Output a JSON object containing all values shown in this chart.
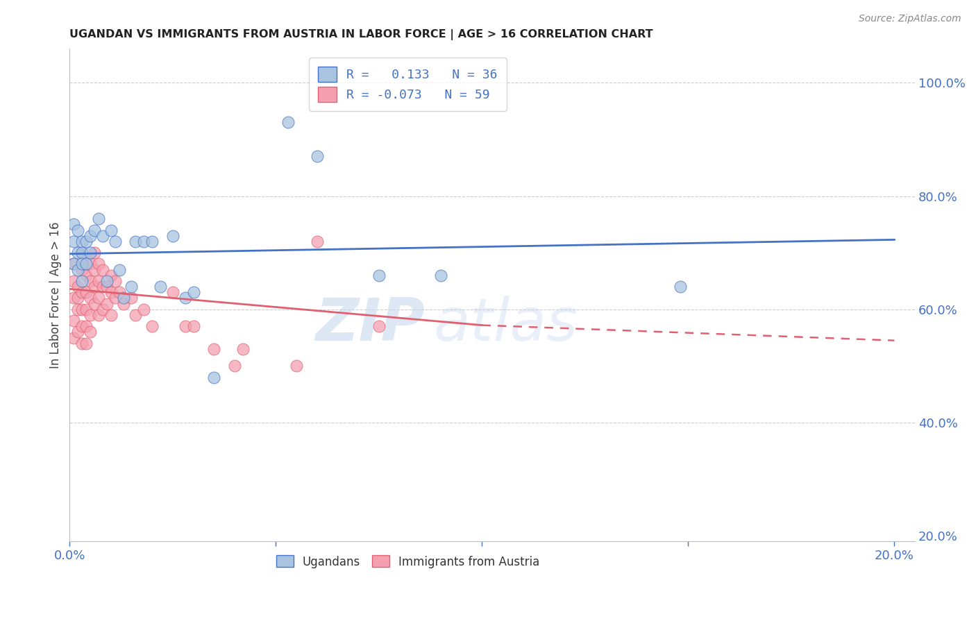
{
  "title": "UGANDAN VS IMMIGRANTS FROM AUSTRIA IN LABOR FORCE | AGE > 16 CORRELATION CHART",
  "source": "Source: ZipAtlas.com",
  "ylabel_label": "In Labor Force | Age > 16",
  "ugandan_R": 0.133,
  "ugandan_N": 36,
  "austria_R": -0.073,
  "austria_N": 59,
  "ugandan_color": "#a8c4e0",
  "austria_color": "#f4a0b0",
  "ugandan_line_color": "#4472C4",
  "austria_line_color": "#E06070",
  "ugandan_x": [
    0.001,
    0.001,
    0.001,
    0.002,
    0.002,
    0.002,
    0.003,
    0.003,
    0.003,
    0.003,
    0.004,
    0.004,
    0.005,
    0.005,
    0.006,
    0.007,
    0.008,
    0.009,
    0.01,
    0.011,
    0.012,
    0.013,
    0.015,
    0.016,
    0.018,
    0.02,
    0.022,
    0.025,
    0.028,
    0.03,
    0.035,
    0.053,
    0.06,
    0.075,
    0.09,
    0.148
  ],
  "ugandan_y": [
    0.75,
    0.72,
    0.68,
    0.74,
    0.7,
    0.67,
    0.72,
    0.7,
    0.68,
    0.65,
    0.72,
    0.68,
    0.73,
    0.7,
    0.74,
    0.76,
    0.73,
    0.65,
    0.74,
    0.72,
    0.67,
    0.62,
    0.64,
    0.72,
    0.72,
    0.72,
    0.64,
    0.73,
    0.62,
    0.63,
    0.48,
    0.93,
    0.87,
    0.66,
    0.66,
    0.64
  ],
  "austria_x": [
    0.001,
    0.001,
    0.001,
    0.001,
    0.001,
    0.002,
    0.002,
    0.002,
    0.002,
    0.003,
    0.003,
    0.003,
    0.003,
    0.003,
    0.003,
    0.004,
    0.004,
    0.004,
    0.004,
    0.004,
    0.004,
    0.005,
    0.005,
    0.005,
    0.005,
    0.005,
    0.006,
    0.006,
    0.006,
    0.006,
    0.007,
    0.007,
    0.007,
    0.007,
    0.008,
    0.008,
    0.008,
    0.009,
    0.009,
    0.01,
    0.01,
    0.01,
    0.011,
    0.011,
    0.012,
    0.013,
    0.015,
    0.016,
    0.018,
    0.02,
    0.025,
    0.028,
    0.03,
    0.035,
    0.04,
    0.042,
    0.055,
    0.06,
    0.075
  ],
  "austria_y": [
    0.68,
    0.65,
    0.62,
    0.58,
    0.55,
    0.64,
    0.62,
    0.6,
    0.56,
    0.7,
    0.67,
    0.63,
    0.6,
    0.57,
    0.54,
    0.69,
    0.66,
    0.63,
    0.6,
    0.57,
    0.54,
    0.68,
    0.65,
    0.62,
    0.59,
    0.56,
    0.7,
    0.67,
    0.64,
    0.61,
    0.68,
    0.65,
    0.62,
    0.59,
    0.67,
    0.64,
    0.6,
    0.64,
    0.61,
    0.66,
    0.63,
    0.59,
    0.65,
    0.62,
    0.63,
    0.61,
    0.62,
    0.59,
    0.6,
    0.57,
    0.63,
    0.57,
    0.57,
    0.53,
    0.5,
    0.53,
    0.5,
    0.72,
    0.57
  ],
  "ugandan_trend": [
    0.698,
    0.723
  ],
  "austria_trend_solid": [
    0.636,
    0.572
  ],
  "austria_trend_dash": [
    0.572,
    0.545
  ],
  "xmin": 0.0,
  "xmax": 0.205,
  "ymin": 0.19,
  "ymax": 1.06,
  "watermark_zip": "ZIP",
  "watermark_atlas": "atlas",
  "background_color": "#ffffff",
  "grid_color": "#cccccc"
}
